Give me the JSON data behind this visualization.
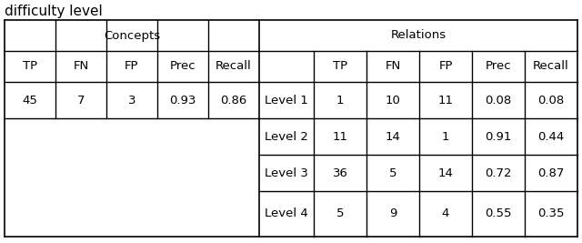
{
  "above_text": "difficulty level",
  "concepts_header": "Concepts",
  "relations_header": "Relations",
  "concept_col_headers": [
    "TP",
    "FN",
    "FP",
    "Prec",
    "Recall"
  ],
  "relation_col_headers": [
    "",
    "TP",
    "FN",
    "FP",
    "Prec",
    "Recall"
  ],
  "concepts_row": [
    "45",
    "7",
    "3",
    "0.93",
    "0.86"
  ],
  "relations_rows": [
    [
      "Level 1",
      "1",
      "10",
      "11",
      "0.08",
      "0.08"
    ],
    [
      "Level 2",
      "11",
      "14",
      "1",
      "0.91",
      "0.44"
    ],
    [
      "Level 3",
      "36",
      "5",
      "14",
      "0.72",
      "0.87"
    ],
    [
      "Level 4",
      "5",
      "9",
      "4",
      "0.55",
      "0.35"
    ]
  ],
  "bg_color": "#ffffff",
  "text_color": "#000000",
  "line_color": "#000000",
  "font_size": 9.5,
  "above_text_fontsize": 11
}
